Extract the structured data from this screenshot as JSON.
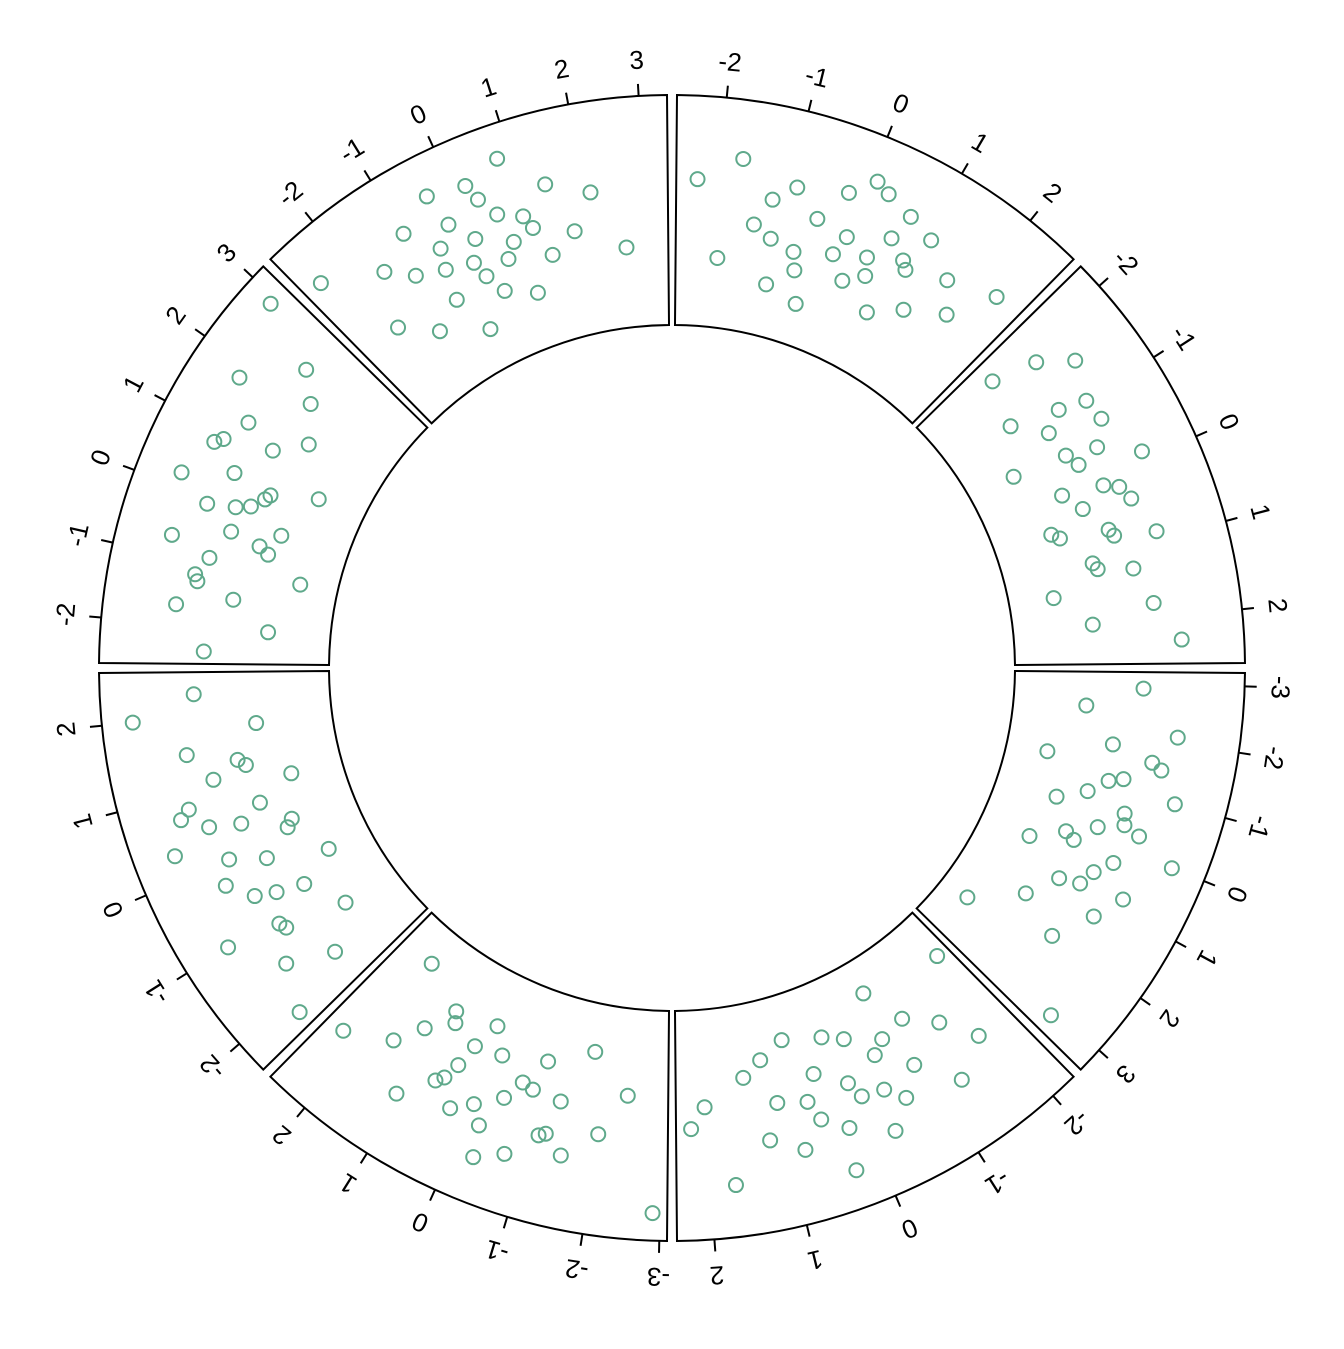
{
  "chart_data": {
    "type": "scatter",
    "color": "#5fa98b",
    "ylim": [
      -3,
      3
    ],
    "sectors": [
      {
        "xlim": [
          -3.2,
          3.4
        ],
        "xticks": [
          -3,
          -2,
          -1,
          0,
          1,
          2,
          3
        ],
        "x": [
          -2.9,
          -2.5,
          -2.1,
          -1.8,
          -1.6,
          -1.4,
          -1.2,
          -1.0,
          -0.8,
          -0.6,
          -0.5,
          -0.3,
          -0.2,
          0.0,
          0.1,
          0.3,
          0.5,
          0.6,
          0.8,
          1.0,
          1.3,
          1.6,
          2.0,
          2.4,
          3.1,
          -1.1,
          -0.4,
          0.2,
          0.9,
          -1.5
        ],
        "y": [
          0.4,
          -1.2,
          1.5,
          -0.3,
          0.9,
          -2.1,
          0.2,
          1.8,
          -0.7,
          0.5,
          -1.5,
          1.1,
          -0.1,
          2.3,
          -0.9,
          0.7,
          -1.8,
          0.3,
          1.4,
          -0.5,
          0.9,
          -1.1,
          0.2,
          -2.4,
          1.6,
          -0.2,
          0.6,
          -0.6,
          0.1,
          1.2
        ]
      },
      {
        "xlim": [
          -2.3,
          2.4
        ],
        "xticks": [
          -2,
          -1,
          0,
          1,
          2
        ],
        "x": [
          -2.1,
          -1.8,
          -1.5,
          -1.3,
          -1.1,
          -0.9,
          -0.8,
          -0.6,
          -0.5,
          -0.3,
          -0.2,
          -0.1,
          0.0,
          0.1,
          0.2,
          0.4,
          0.5,
          0.7,
          0.8,
          1.0,
          1.2,
          1.4,
          1.7,
          2.0,
          2.2,
          -0.7,
          0.3,
          0.6,
          -0.4,
          1.1
        ],
        "y": [
          -1.9,
          0.6,
          -0.4,
          1.3,
          -1.1,
          0.2,
          -2.3,
          0.9,
          -0.6,
          1.6,
          -1.4,
          0.3,
          -0.2,
          -1.7,
          1.0,
          -0.8,
          0.5,
          -2.0,
          1.2,
          -0.3,
          0.7,
          -1.2,
          1.8,
          -0.5,
          0.1,
          -0.9,
          2.2,
          -0.1,
          0.4,
          -1.6
        ]
      },
      {
        "xlim": [
          -3.1,
          2.6
        ],
        "xticks": [
          -3,
          -2,
          -1,
          0,
          1,
          2
        ],
        "x": [
          -2.9,
          -2.4,
          -2.0,
          -1.7,
          -1.5,
          -1.3,
          -1.1,
          -0.9,
          -0.7,
          -0.6,
          -0.4,
          -0.3,
          -0.1,
          0.0,
          0.2,
          0.3,
          0.5,
          0.7,
          0.9,
          1.1,
          1.3,
          1.6,
          1.9,
          2.3,
          -0.8,
          -0.2,
          0.4,
          0.6,
          -1.2,
          1.0
        ],
        "y": [
          2.5,
          -0.8,
          0.4,
          -1.9,
          1.2,
          -0.3,
          0.8,
          -1.3,
          1.6,
          -0.5,
          0.1,
          2.0,
          -1.0,
          0.6,
          -1.7,
          1.0,
          -0.2,
          0.5,
          -1.2,
          1.4,
          -0.6,
          0.2,
          -2.2,
          0.9,
          -0.4,
          1.1,
          -0.9,
          0.3,
          0.7,
          -1.5
        ]
      },
      {
        "xlim": [
          -2.4,
          2.6
        ],
        "xticks": [
          -2,
          -1,
          0,
          1,
          2
        ],
        "x": [
          -2.2,
          -1.9,
          -1.6,
          -1.4,
          -1.2,
          -1.0,
          -0.8,
          -0.6,
          -0.5,
          -0.3,
          -0.2,
          0.0,
          0.1,
          0.3,
          0.4,
          0.6,
          0.8,
          0.9,
          1.1,
          1.3,
          1.5,
          1.8,
          2.0,
          2.3,
          -0.7,
          0.2,
          0.5,
          1.2,
          -1.1,
          0.7
        ],
        "y": [
          1.4,
          -0.5,
          0.8,
          -1.6,
          0.2,
          1.9,
          -0.9,
          0.5,
          -2.0,
          1.1,
          -0.3,
          0.7,
          -1.2,
          2.1,
          0.0,
          -0.7,
          1.3,
          -1.8,
          0.4,
          -0.4,
          1.0,
          -1.1,
          2.4,
          0.6,
          -0.1,
          -1.4,
          0.9,
          -0.6,
          0.3,
          1.6
        ]
      },
      {
        "xlim": [
          -2.6,
          3.2
        ],
        "xticks": [
          -2,
          -1,
          0,
          1,
          2,
          3
        ],
        "x": [
          -2.4,
          -2.0,
          -1.7,
          -1.5,
          -1.2,
          -1.0,
          -0.9,
          -0.7,
          -0.5,
          -0.4,
          -0.2,
          -0.1,
          0.1,
          0.2,
          0.4,
          0.5,
          0.7,
          0.9,
          1.1,
          1.3,
          1.5,
          1.8,
          2.1,
          2.5,
          2.9,
          -0.6,
          0.0,
          0.3,
          0.8,
          -1.3
        ],
        "y": [
          0.3,
          -1.5,
          1.2,
          -0.4,
          0.8,
          -2.2,
          0.5,
          1.7,
          -0.8,
          0.1,
          -1.3,
          1.0,
          -0.2,
          2.0,
          -0.6,
          0.6,
          -1.9,
          1.3,
          -0.1,
          0.9,
          -0.9,
          1.8,
          -0.3,
          0.4,
          2.4,
          -1.1,
          0.2,
          -0.5,
          1.5,
          0.7
        ]
      },
      {
        "xlim": [
          -2.8,
          3.4
        ],
        "xticks": [
          -2,
          -1,
          0,
          1,
          2,
          3
        ],
        "x": [
          -2.5,
          -2.0,
          -1.6,
          -1.4,
          -1.2,
          -1.0,
          -0.8,
          -0.6,
          -0.5,
          -0.3,
          -0.2,
          0.0,
          0.1,
          0.2,
          0.4,
          0.5,
          0.7,
          0.8,
          1.0,
          1.2,
          1.4,
          1.7,
          2.1,
          2.6,
          -0.7,
          -0.1,
          0.3,
          0.6,
          0.9,
          -0.4
        ],
        "y": [
          1.8,
          -0.6,
          0.9,
          -1.4,
          0.3,
          1.5,
          -0.9,
          0.6,
          -2.1,
          1.1,
          -0.2,
          0.4,
          -1.3,
          1.9,
          -0.5,
          0.8,
          -1.7,
          2.3,
          0.1,
          -0.8,
          1.2,
          -0.3,
          0.7,
          -1.0,
          0.0,
          -0.7,
          1.4,
          -0.1,
          0.5,
          2.1
        ]
      },
      {
        "xlim": [
          -2.6,
          2.7
        ],
        "xticks": [
          -2,
          -1,
          0,
          1,
          2
        ],
        "x": [
          -2.3,
          -1.9,
          -1.7,
          -1.4,
          -1.2,
          -1.0,
          -0.9,
          -0.7,
          -0.5,
          -0.4,
          -0.2,
          -0.1,
          0.0,
          0.2,
          0.3,
          0.5,
          0.6,
          0.8,
          1.0,
          1.1,
          1.3,
          1.6,
          1.9,
          2.3,
          -0.6,
          0.1,
          0.4,
          0.9,
          -1.1,
          0.7
        ],
        "y": [
          0.9,
          -1.3,
          1.6,
          -0.2,
          0.6,
          -1.8,
          1.1,
          -0.7,
          0.4,
          -2.1,
          1.4,
          -0.4,
          0.2,
          -1.0,
          1.8,
          -0.6,
          0.7,
          -1.5,
          0.1,
          1.2,
          -0.9,
          0.5,
          -0.3,
          1.0,
          -1.2,
          2.0,
          -0.1,
          0.3,
          -0.5,
          1.5
        ]
      },
      {
        "xlim": [
          -2.3,
          2.6
        ],
        "xticks": [
          -2,
          -1,
          0,
          1,
          2
        ],
        "x": [
          -2.0,
          -1.8,
          -1.5,
          -1.3,
          -1.1,
          -0.9,
          -0.7,
          -0.6,
          -0.4,
          -0.3,
          -0.1,
          0.0,
          0.1,
          0.3,
          0.4,
          0.6,
          0.7,
          0.9,
          1.1,
          1.3,
          1.5,
          1.8,
          2.0,
          2.3,
          -0.5,
          0.2,
          0.5,
          0.8,
          -1.0,
          1.2
        ],
        "y": [
          -0.8,
          0.5,
          1.4,
          -1.2,
          0.2,
          -0.4,
          1.1,
          -1.9,
          0.6,
          -0.1,
          1.7,
          -0.9,
          0.3,
          -0.5,
          0.9,
          -1.4,
          0.0,
          1.3,
          -0.7,
          0.4,
          -2.0,
          0.8,
          -1.0,
          1.5,
          -0.3,
          0.7,
          -1.6,
          0.1,
          1.0,
          -0.6
        ]
      }
    ]
  }
}
